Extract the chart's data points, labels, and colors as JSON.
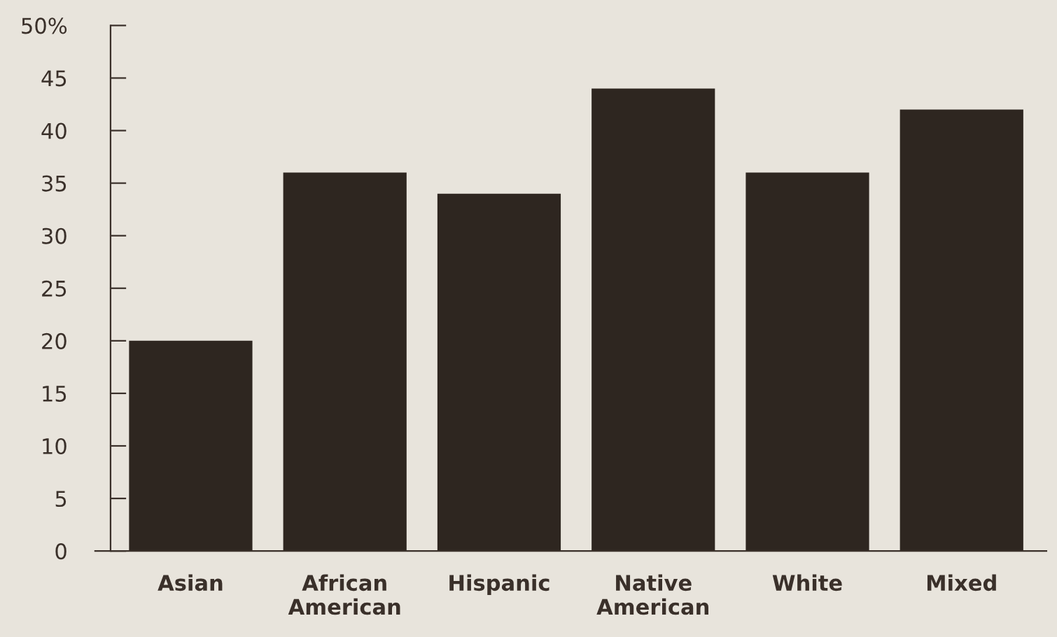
{
  "chart_data": {
    "type": "bar",
    "categories": [
      "Asian",
      "African\nAmerican",
      "Hispanic",
      "Native\nAmerican",
      "White",
      "Mixed"
    ],
    "values": [
      20,
      36,
      34,
      44,
      36,
      42
    ],
    "color": "#2e2620",
    "ylim": [
      0,
      50
    ],
    "yticks": [
      0,
      5,
      10,
      15,
      20,
      25,
      30,
      35,
      40,
      45,
      {
        "value": 50,
        "label": "50%"
      }
    ],
    "grid": false
  }
}
